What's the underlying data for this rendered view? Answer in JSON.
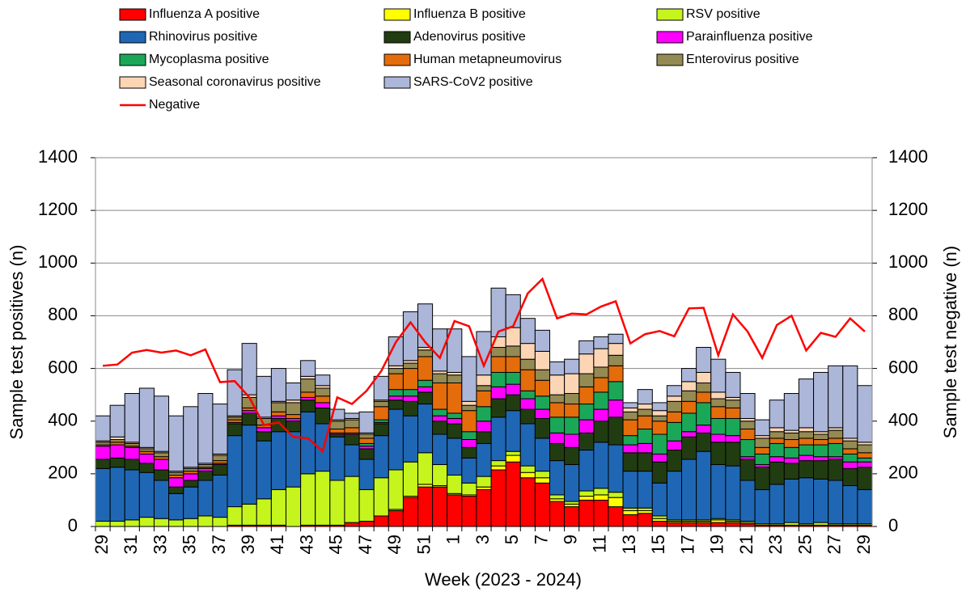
{
  "chart_data": {
    "type": "bar",
    "stacked": true,
    "x_label": "Week (2023 - 2024)",
    "y_label": "Sample test positives (n)",
    "y2_label": "Sample test negative (n)",
    "categories": [
      "29",
      null,
      "31",
      null,
      "33",
      null,
      "35",
      null,
      "37",
      null,
      "39",
      null,
      "41",
      null,
      "43",
      null,
      "45",
      null,
      "47",
      null,
      "49",
      null,
      "51",
      null,
      "1",
      null,
      "3",
      null,
      "5",
      null,
      "7",
      null,
      "9",
      null,
      "11",
      null,
      "13",
      null,
      "15",
      null,
      "17",
      null,
      "19",
      null,
      "21",
      null,
      "23",
      null,
      "25",
      null,
      "27",
      null,
      "29"
    ],
    "ylim": [
      0,
      1400
    ],
    "yticks": [
      0,
      200,
      400,
      600,
      800,
      1000,
      1200,
      1400
    ],
    "y2lim": [
      0,
      1400
    ],
    "y2ticks": [
      0,
      200,
      400,
      600,
      800,
      1000,
      1200,
      1400
    ],
    "grid": true,
    "series": [
      {
        "name": "Influenza A positive",
        "color": "#ff0000",
        "values": [
          0,
          0,
          0,
          0,
          0,
          0,
          0,
          0,
          0,
          5,
          5,
          5,
          5,
          0,
          5,
          5,
          5,
          15,
          20,
          40,
          60,
          110,
          150,
          150,
          120,
          115,
          140,
          215,
          245,
          185,
          165,
          95,
          75,
          100,
          100,
          75,
          45,
          50,
          20,
          15,
          15,
          15,
          15,
          15,
          10,
          5,
          5,
          5,
          5,
          5,
          5,
          5,
          5
        ]
      },
      {
        "name": "Influenza B positive",
        "color": "#ffff00",
        "values": [
          0,
          0,
          0,
          0,
          0,
          0,
          0,
          0,
          0,
          0,
          0,
          0,
          0,
          0,
          0,
          0,
          0,
          0,
          0,
          0,
          5,
          5,
          10,
          5,
          5,
          5,
          10,
          15,
          25,
          20,
          20,
          10,
          10,
          15,
          20,
          35,
          15,
          10,
          10,
          5,
          5,
          5,
          10,
          5,
          5,
          5,
          0,
          0,
          0,
          0,
          0,
          0,
          0
        ]
      },
      {
        "name": "RSV positive",
        "color": "#c5f51c",
        "values": [
          20,
          20,
          25,
          35,
          30,
          25,
          30,
          40,
          35,
          70,
          80,
          100,
          135,
          150,
          195,
          205,
          170,
          175,
          120,
          145,
          150,
          130,
          120,
          80,
          70,
          45,
          40,
          20,
          15,
          25,
          25,
          15,
          10,
          20,
          25,
          20,
          10,
          10,
          10,
          5,
          5,
          5,
          5,
          5,
          5,
          0,
          5,
          10,
          5,
          10,
          5,
          5,
          5
        ]
      },
      {
        "name": "Rhinovirus positive",
        "color": "#1f67b4",
        "values": [
          200,
          205,
          190,
          170,
          145,
          100,
          120,
          135,
          160,
          270,
          300,
          220,
          220,
          210,
          235,
          180,
          165,
          120,
          115,
          160,
          230,
          175,
          185,
          115,
          140,
          95,
          125,
          165,
          155,
          160,
          125,
          130,
          140,
          155,
          175,
          180,
          140,
          140,
          125,
          185,
          230,
          260,
          205,
          205,
          155,
          130,
          150,
          165,
          175,
          165,
          165,
          145,
          130
        ]
      },
      {
        "name": "Adenovirus positive",
        "color": "#223c12",
        "values": [
          35,
          35,
          40,
          35,
          40,
          25,
          25,
          35,
          40,
          45,
          45,
          35,
          50,
          40,
          45,
          60,
          10,
          40,
          40,
          45,
          35,
          55,
          45,
          50,
          55,
          40,
          45,
          70,
          60,
          55,
          75,
          65,
          65,
          65,
          80,
          105,
          70,
          70,
          80,
          80,
          85,
          70,
          85,
          90,
          80,
          85,
          85,
          60,
          65,
          70,
          80,
          65,
          85
        ]
      },
      {
        "name": "Parainfluenza positive",
        "color": "#ff00ff",
        "values": [
          50,
          50,
          45,
          35,
          40,
          35,
          25,
          10,
          5,
          5,
          10,
          15,
          10,
          10,
          10,
          20,
          5,
          5,
          10,
          5,
          15,
          20,
          20,
          20,
          20,
          30,
          40,
          45,
          40,
          40,
          35,
          40,
          50,
          50,
          45,
          65,
          30,
          35,
          30,
          35,
          20,
          30,
          30,
          25,
          10,
          10,
          20,
          20,
          20,
          15,
          10,
          25,
          20
        ]
      },
      {
        "name": "Mycoplasma positive",
        "color": "#1aa858",
        "values": [
          0,
          0,
          0,
          0,
          0,
          0,
          0,
          0,
          0,
          0,
          0,
          0,
          0,
          0,
          0,
          0,
          0,
          0,
          10,
          10,
          25,
          25,
          25,
          25,
          20,
          30,
          55,
          55,
          45,
          30,
          50,
          60,
          65,
          60,
          65,
          70,
          35,
          55,
          75,
          70,
          70,
          85,
          60,
          65,
          65,
          40,
          50,
          40,
          40,
          45,
          50,
          30,
          15
        ]
      },
      {
        "name": "Human metapneumovirus",
        "color": "#e46c0a",
        "values": [
          5,
          10,
          5,
          10,
          10,
          10,
          10,
          5,
          10,
          10,
          10,
          10,
          15,
          15,
          20,
          25,
          15,
          20,
          20,
          50,
          60,
          80,
          90,
          100,
          115,
          80,
          60,
          60,
          60,
          80,
          60,
          55,
          50,
          65,
          55,
          60,
          60,
          50,
          50,
          40,
          45,
          40,
          45,
          40,
          40,
          25,
          20,
          30,
          25,
          20,
          20,
          20,
          20
        ]
      },
      {
        "name": "Enterovirus positive",
        "color": "#948a54",
        "values": [
          10,
          10,
          10,
          10,
          15,
          10,
          10,
          10,
          20,
          10,
          40,
          25,
          35,
          45,
          50,
          30,
          30,
          30,
          15,
          20,
          20,
          20,
          25,
          35,
          30,
          20,
          20,
          35,
          40,
          40,
          40,
          30,
          40,
          50,
          40,
          40,
          30,
          25,
          20,
          40,
          40,
          35,
          30,
          30,
          30,
          35,
          25,
          25,
          25,
          20,
          30,
          30,
          30
        ]
      },
      {
        "name": "Seasonal coronavirus positive",
        "color": "#fcd5b5",
        "values": [
          5,
          10,
          5,
          5,
          5,
          5,
          5,
          5,
          5,
          5,
          10,
          5,
          5,
          10,
          10,
          10,
          5,
          5,
          5,
          5,
          10,
          10,
          10,
          10,
          10,
          15,
          40,
          40,
          70,
          60,
          70,
          75,
          75,
          75,
          70,
          45,
          15,
          20,
          20,
          20,
          35,
          40,
          25,
          10,
          10,
          10,
          15,
          10,
          15,
          10,
          10,
          10,
          10
        ]
      },
      {
        "name": "SARS-CoV2 positive",
        "color": "#abb6d9",
        "values": [
          95,
          120,
          185,
          225,
          210,
          210,
          230,
          265,
          190,
          175,
          195,
          155,
          125,
          65,
          60,
          40,
          40,
          20,
          80,
          90,
          110,
          185,
          165,
          160,
          165,
          170,
          165,
          185,
          125,
          95,
          80,
          50,
          55,
          50,
          45,
          35,
          20,
          55,
          30,
          40,
          50,
          95,
          125,
          95,
          95,
          60,
          105,
          140,
          185,
          225,
          235,
          275,
          215
        ]
      },
      {
        "name": "Negative",
        "color": "#ff0000",
        "type": "line",
        "axis": "y2",
        "values": [
          610,
          615,
          660,
          670,
          660,
          668,
          650,
          672,
          548,
          552,
          490,
          385,
          395,
          340,
          335,
          285,
          490,
          465,
          515,
          590,
          700,
          775,
          700,
          640,
          780,
          760,
          610,
          740,
          760,
          885,
          940,
          790,
          808,
          805,
          835,
          855,
          695,
          730,
          742,
          722,
          828,
          830,
          650,
          805,
          740,
          640,
          765,
          800,
          668,
          735,
          720,
          790,
          740
        ]
      }
    ]
  }
}
